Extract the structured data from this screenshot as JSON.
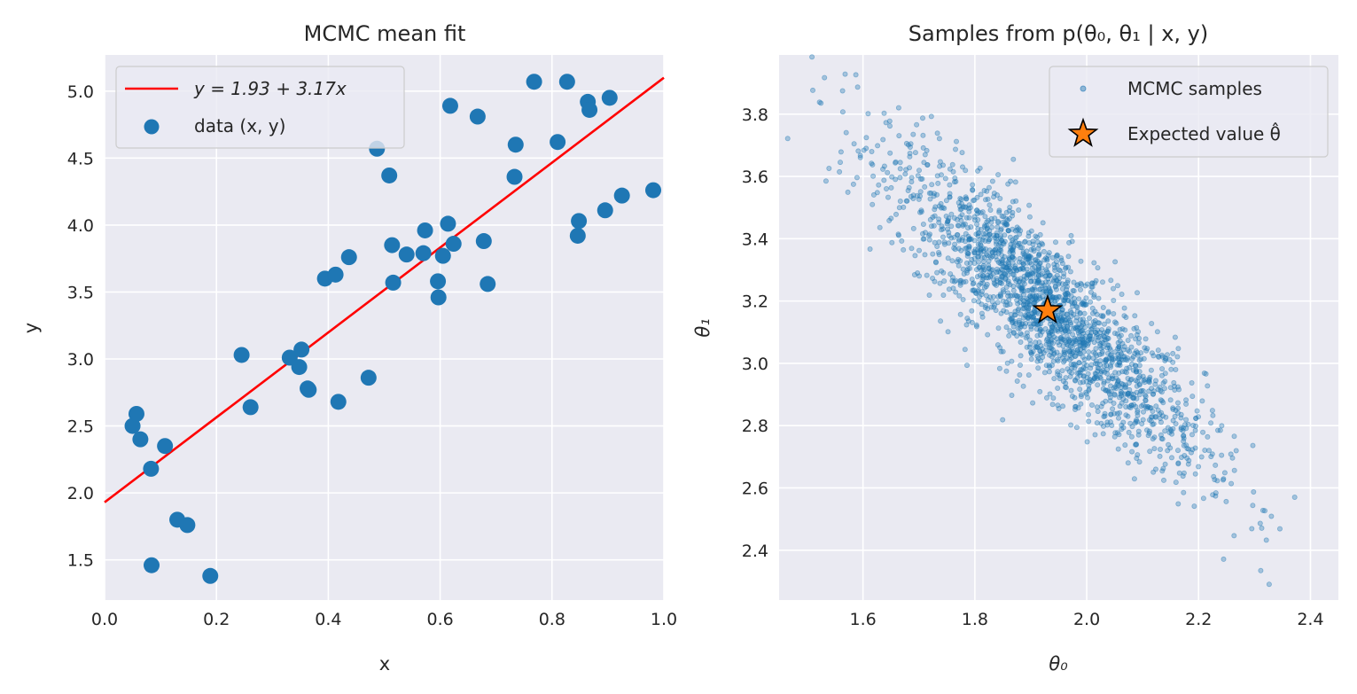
{
  "chart_data": [
    {
      "type": "scatter",
      "title": "MCMC mean fit",
      "xlabel": "x",
      "ylabel": "y",
      "xlim": [
        0.0,
        1.0
      ],
      "ylim": [
        1.2,
        5.27
      ],
      "xticks": [
        "0.0",
        "0.2",
        "0.4",
        "0.6",
        "0.8",
        "1.0"
      ],
      "yticks": [
        "1.5",
        "2.0",
        "2.5",
        "3.0",
        "3.5",
        "4.0",
        "4.5",
        "5.0"
      ],
      "xtick_values": [
        0.0,
        0.2,
        0.4,
        0.6,
        0.8,
        1.0
      ],
      "ytick_values": [
        1.5,
        2.0,
        2.5,
        3.0,
        3.5,
        4.0,
        4.5,
        5.0
      ],
      "grid": true,
      "legend_position": "top-left",
      "fit_line": {
        "name": "y = 1.93 + 3.17x",
        "intercept": 1.93,
        "slope": 3.17,
        "color": "#ff0000"
      },
      "series": [
        {
          "name": "data (x, y)",
          "color": "#1f77b4",
          "points": [
            [
              0.05,
              2.5
            ],
            [
              0.057,
              2.59
            ],
            [
              0.064,
              2.4
            ],
            [
              0.083,
              2.18
            ],
            [
              0.084,
              1.46
            ],
            [
              0.108,
              2.35
            ],
            [
              0.13,
              1.8
            ],
            [
              0.148,
              1.76
            ],
            [
              0.189,
              1.38
            ],
            [
              0.245,
              3.03
            ],
            [
              0.261,
              2.64
            ],
            [
              0.331,
              3.01
            ],
            [
              0.348,
              2.94
            ],
            [
              0.352,
              3.07
            ],
            [
              0.363,
              2.78
            ],
            [
              0.365,
              2.77
            ],
            [
              0.394,
              3.6
            ],
            [
              0.413,
              3.63
            ],
            [
              0.418,
              2.68
            ],
            [
              0.437,
              3.76
            ],
            [
              0.472,
              2.86
            ],
            [
              0.487,
              4.57
            ],
            [
              0.509,
              4.37
            ],
            [
              0.514,
              3.85
            ],
            [
              0.516,
              3.57
            ],
            [
              0.54,
              3.78
            ],
            [
              0.57,
              3.79
            ],
            [
              0.573,
              3.96
            ],
            [
              0.596,
              3.58
            ],
            [
              0.597,
              3.46
            ],
            [
              0.605,
              3.77
            ],
            [
              0.614,
              4.01
            ],
            [
              0.618,
              4.89
            ],
            [
              0.624,
              3.86
            ],
            [
              0.667,
              4.81
            ],
            [
              0.678,
              3.88
            ],
            [
              0.685,
              3.56
            ],
            [
              0.733,
              4.36
            ],
            [
              0.735,
              4.6
            ],
            [
              0.768,
              5.07
            ],
            [
              0.81,
              4.62
            ],
            [
              0.827,
              5.07
            ],
            [
              0.846,
              3.92
            ],
            [
              0.848,
              4.03
            ],
            [
              0.864,
              4.92
            ],
            [
              0.867,
              4.86
            ],
            [
              0.895,
              4.11
            ],
            [
              0.903,
              4.95
            ],
            [
              0.925,
              4.22
            ],
            [
              0.981,
              4.26
            ]
          ]
        }
      ]
    },
    {
      "type": "scatter",
      "title": "Samples from p(θ₀, θ₁ | x, y)",
      "xlabel": "θ₀",
      "ylabel": "θ₁",
      "xlim": [
        1.45,
        2.45
      ],
      "ylim": [
        2.24,
        3.99
      ],
      "xticks": [
        "1.6",
        "1.8",
        "2.0",
        "2.2",
        "2.4"
      ],
      "yticks": [
        "2.4",
        "2.6",
        "2.8",
        "3.0",
        "3.2",
        "3.4",
        "3.6",
        "3.8"
      ],
      "xtick_values": [
        1.6,
        1.8,
        2.0,
        2.2,
        2.4
      ],
      "ytick_values": [
        2.4,
        2.6,
        2.8,
        3.0,
        3.2,
        3.4,
        3.6,
        3.8
      ],
      "grid": true,
      "legend_position": "top-right",
      "sample_distribution": {
        "name": "MCMC samples",
        "color": "#1f77b4",
        "count": 2000,
        "mean": [
          1.93,
          3.17
        ],
        "std": [
          0.14,
          0.25
        ],
        "correlation": -0.88
      },
      "series": [
        {
          "name": "Expected value θ̂",
          "color": "#ff7f0e",
          "points": [
            [
              1.93,
              3.17
            ]
          ]
        }
      ]
    }
  ]
}
